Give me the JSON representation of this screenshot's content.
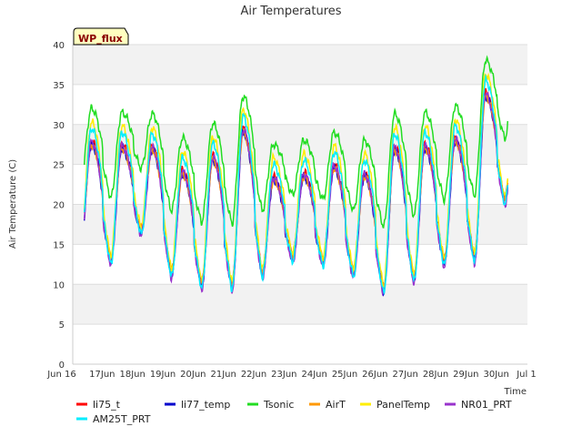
{
  "chart_data": {
    "type": "line",
    "title": "Air Temperatures",
    "xlabel": "Time",
    "ylabel": "Air Temperature (C)",
    "ylim": [
      0,
      40
    ],
    "yticks": [
      0,
      5,
      10,
      15,
      20,
      25,
      30,
      35,
      40
    ],
    "xlim": [
      "Jun 16",
      "Jul 1"
    ],
    "xticks": [
      "Jun 16",
      "Jun 17",
      "Jun 18",
      "Jun 19",
      "Jun 20",
      "Jun 21",
      "Jun 22",
      "Jun 23",
      "Jun 24",
      "Jun 25",
      "Jun 26",
      "Jun 27",
      "Jun 28",
      "Jun 29",
      "Jun 30",
      "Jul 1"
    ],
    "xtick_labels": [
      "Jun 16",
      "17Jun",
      "18Jun",
      "19Jun",
      "20Jun",
      "21Jun",
      "22Jun",
      "23Jun",
      "24Jun",
      "25Jun",
      "26Jun",
      "27Jun",
      "28Jun",
      "29Jun",
      "30Jun",
      "Jul 1"
    ],
    "annotation": "WP_flux",
    "background": "alternating grey bands",
    "legend_position": "bottom",
    "day_labels": [
      "Jun 16",
      "Jun 17",
      "Jun 18",
      "Jun 19",
      "Jun 20",
      "Jun 21",
      "Jun 22",
      "Jun 23",
      "Jun 24",
      "Jun 25",
      "Jun 26",
      "Jun 27",
      "Jun 28",
      "Jun 29",
      "Jun 30"
    ],
    "daily_min": [
      14.8,
      12.8,
      16.5,
      11.2,
      9.8,
      9.6,
      11.2,
      13.2,
      12.6,
      11.2,
      9.2,
      10.6,
      12.6,
      13.1,
      20.3
    ],
    "daily_max": [
      27.5,
      27.0,
      26.8,
      23.8,
      25.6,
      29.0,
      23.0,
      23.5,
      24.5,
      23.5,
      26.8,
      27.0,
      27.8,
      33.5,
      null
    ],
    "series": [
      {
        "name": "li75_t",
        "color": "#ff0000",
        "max_offset": 0.5,
        "min_offset": 0.3
      },
      {
        "name": "li77_temp",
        "color": "#0000cc",
        "max_offset": 0.0,
        "min_offset": 0.0
      },
      {
        "name": "Tsonic",
        "color": "#22dd22",
        "max_offset": 4.5,
        "min_offset": 8.0
      },
      {
        "name": "AirT",
        "color": "#ff9900",
        "max_offset": 0.0,
        "min_offset": 0.5
      },
      {
        "name": "PanelTemp",
        "color": "#ffee00",
        "max_offset": 2.8,
        "min_offset": 0.6
      },
      {
        "name": "NR01_PRT",
        "color": "#9933cc",
        "max_offset": 0.3,
        "min_offset": -0.4
      },
      {
        "name": "AM25T_PRT",
        "color": "#00eeff",
        "max_offset": 2.0,
        "min_offset": -0.3
      }
    ]
  }
}
